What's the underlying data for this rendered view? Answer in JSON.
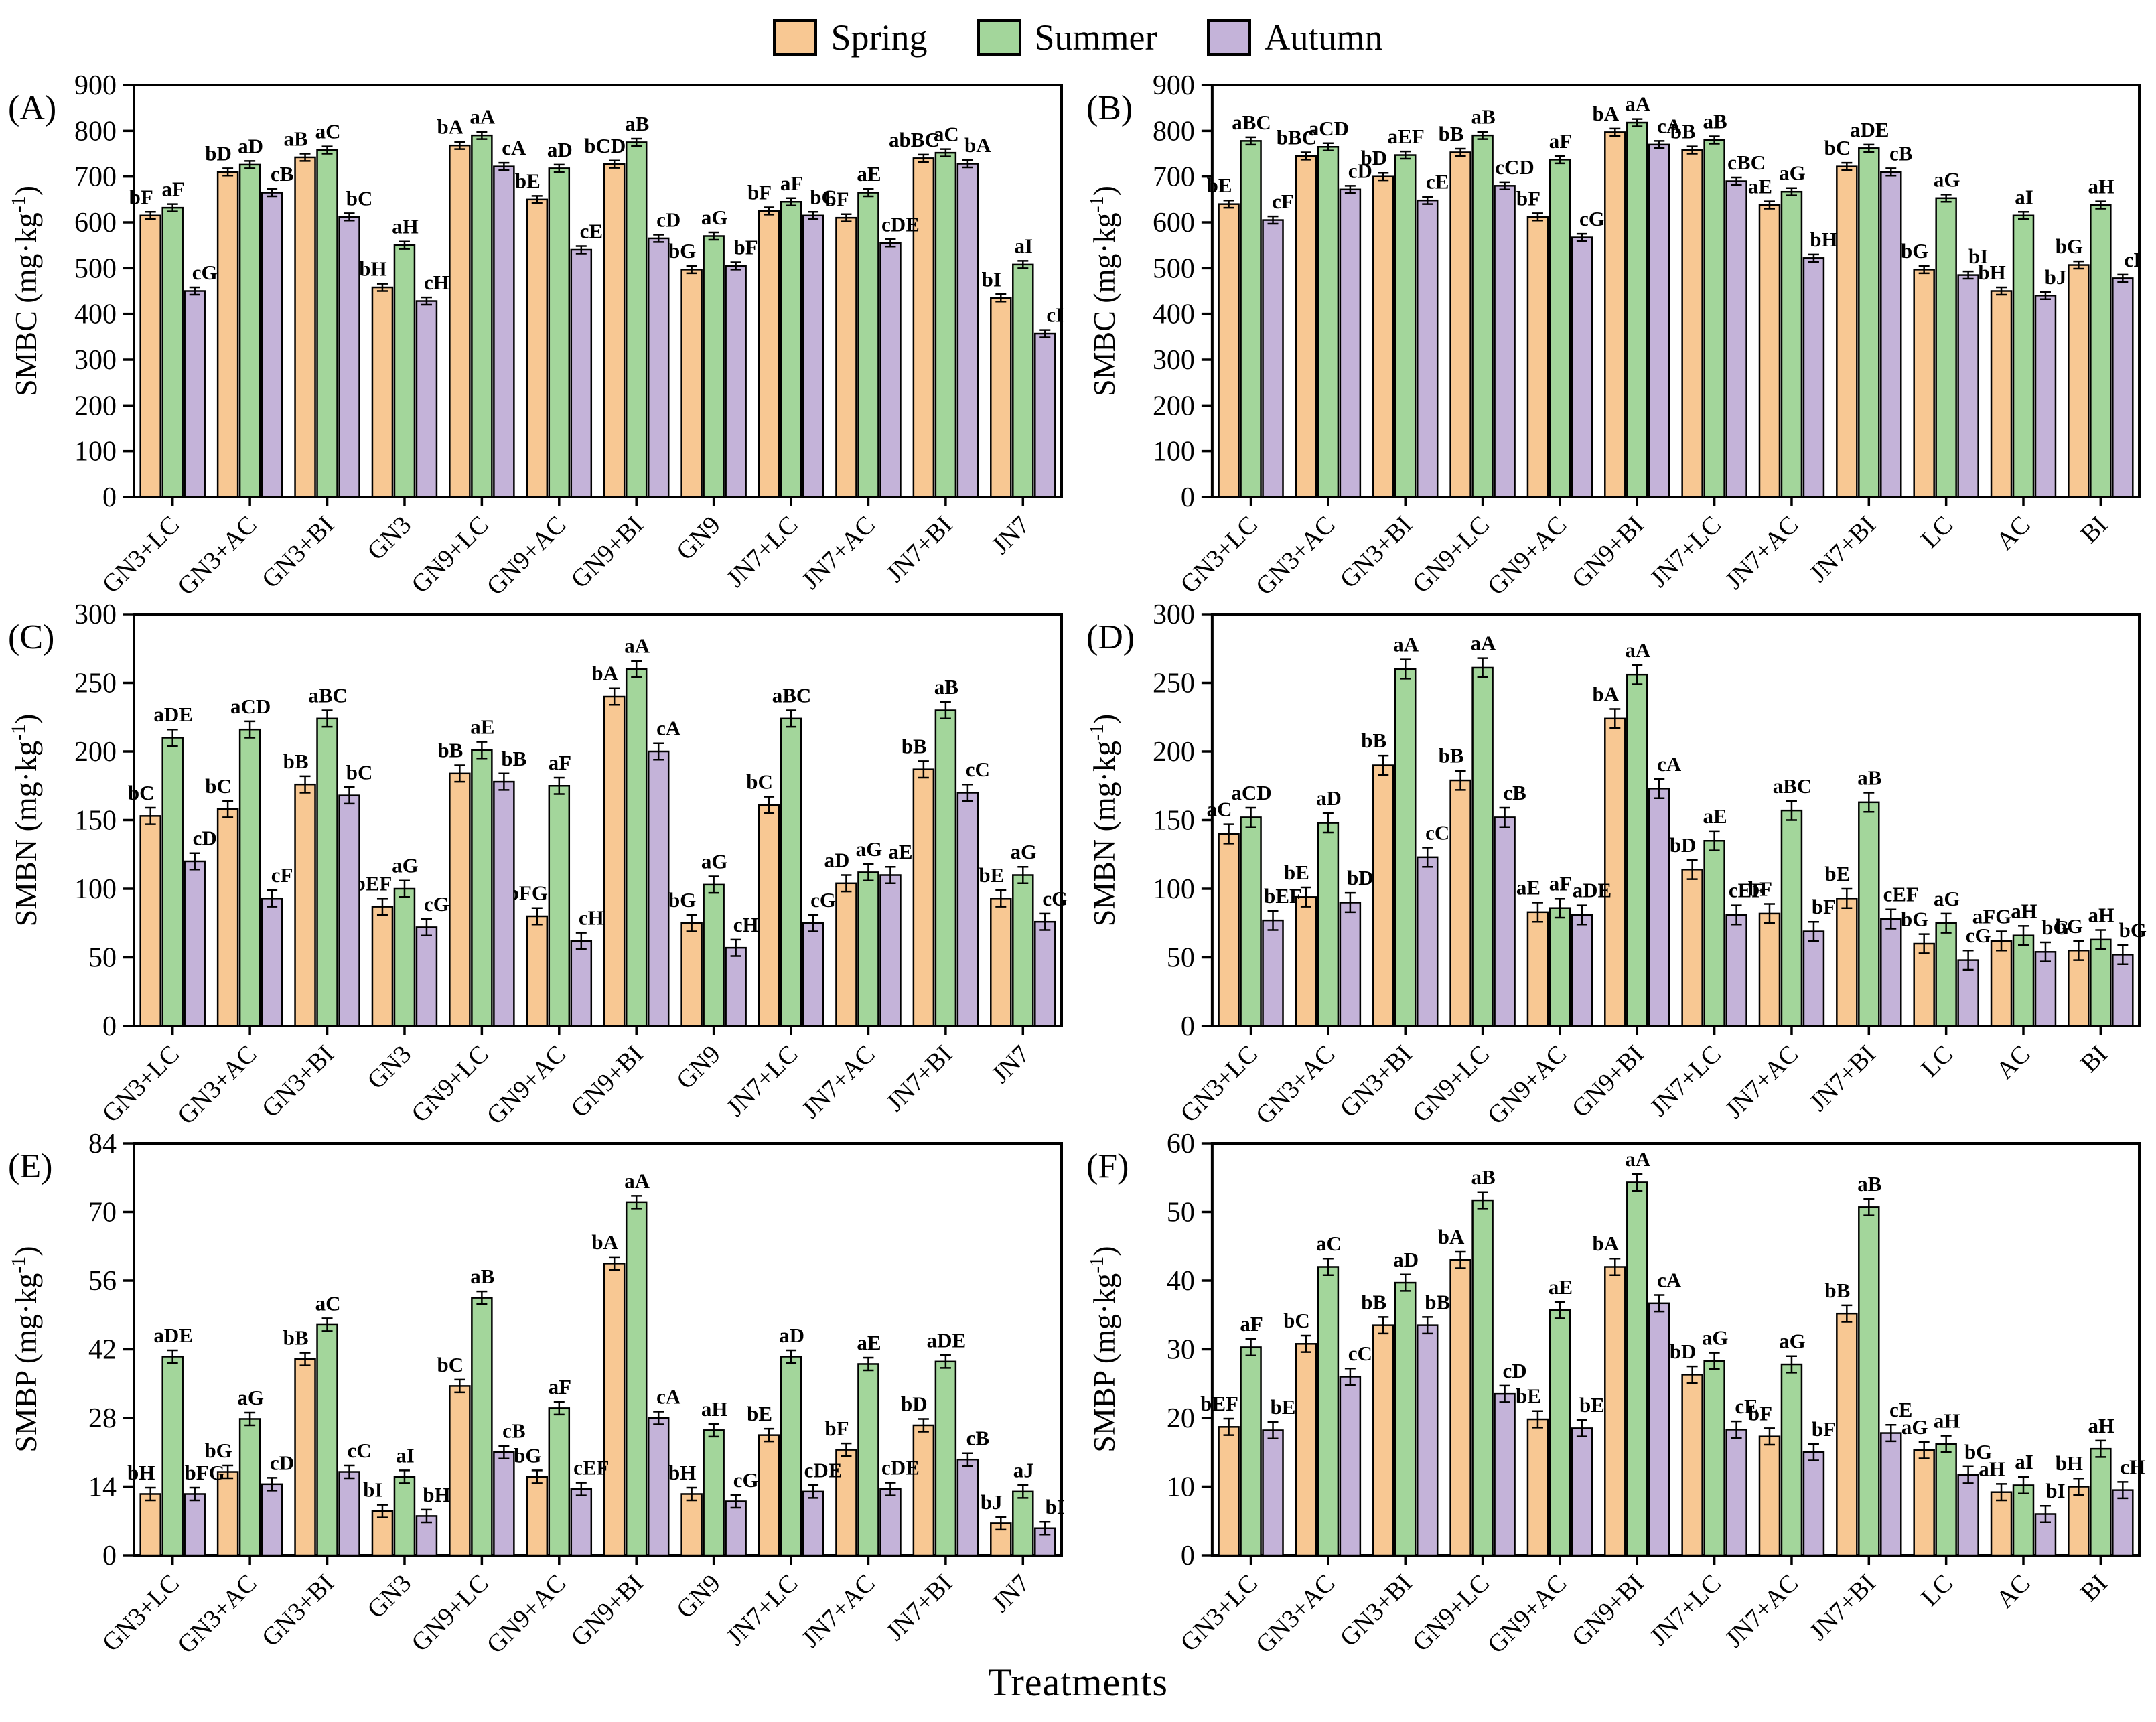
{
  "xlabel": "Treatments",
  "legend": {
    "items": [
      {
        "label": "Spring",
        "color": "#F8C893"
      },
      {
        "label": "Summer",
        "color": "#A3D69B"
      },
      {
        "label": "Autumn",
        "color": "#C4B3D9"
      }
    ]
  },
  "style": {
    "bar_border": "#000000",
    "axis_color": "#000000"
  },
  "chart_data": [
    {
      "type": "bar",
      "letter": "A",
      "ylabel": {
        "measure": "SMBC",
        "unit": "mg·kg",
        "sup": "-1"
      },
      "ylim": [
        0,
        900
      ],
      "ystep": 100,
      "err": 8,
      "legend_position": "top",
      "grid": false,
      "categories": [
        "GN3+LC",
        "GN3+AC",
        "GN3+BI",
        "GN3",
        "GN9+LC",
        "GN9+AC",
        "GN9+BI",
        "GN9",
        "JN7+LC",
        "JN7+AC",
        "JN7+BI",
        "JN7"
      ],
      "series": [
        {
          "name": "Spring",
          "values": [
            615,
            710,
            742,
            458,
            768,
            650,
            727,
            497,
            625,
            610,
            740,
            435
          ],
          "sig": [
            "bF",
            "bD",
            "aB",
            "bH",
            "bA",
            "bE",
            "bCD",
            "bG",
            "bF",
            "bF",
            "abBC",
            "bI"
          ]
        },
        {
          "name": "Summer",
          "values": [
            632,
            726,
            758,
            550,
            790,
            718,
            775,
            570,
            645,
            665,
            752,
            508
          ],
          "sig": [
            "aF",
            "aD",
            "aC",
            "aH",
            "aA",
            "aD",
            "aB",
            "aG",
            "aF",
            "aE",
            "aC",
            "aI"
          ]
        },
        {
          "name": "Autumn",
          "values": [
            450,
            665,
            612,
            428,
            722,
            540,
            565,
            505,
            615,
            555,
            728,
            357
          ],
          "sig": [
            "cG",
            "cB",
            "bC",
            "cH",
            "cA",
            "cE",
            "cD",
            "bF",
            "bC",
            "cDE",
            "bA",
            "cI"
          ]
        }
      ]
    },
    {
      "type": "bar",
      "letter": "B",
      "ylabel": {
        "measure": "SMBC",
        "unit": "mg·kg",
        "sup": "-1"
      },
      "ylim": [
        0,
        900
      ],
      "ystep": 100,
      "err": 8,
      "legend_position": "top",
      "grid": false,
      "categories": [
        "GN3+LC",
        "GN3+AC",
        "GN3+BI",
        "GN9+LC",
        "GN9+AC",
        "GN9+BI",
        "JN7+LC",
        "JN7+AC",
        "JN7+BI",
        "LC",
        "AC",
        "BI"
      ],
      "series": [
        {
          "name": "Spring",
          "values": [
            640,
            745,
            700,
            753,
            612,
            797,
            758,
            638,
            722,
            497,
            450,
            507
          ],
          "sig": [
            "bE",
            "bBC",
            "bD",
            "bB",
            "bF",
            "bA",
            "bB",
            "aE",
            "bC",
            "bG",
            "bH",
            "bG"
          ]
        },
        {
          "name": "Summer",
          "values": [
            778,
            765,
            747,
            790,
            737,
            818,
            780,
            667,
            762,
            653,
            615,
            638
          ],
          "sig": [
            "aBC",
            "aCD",
            "aEF",
            "aB",
            "aF",
            "aA",
            "aB",
            "aG",
            "aDE",
            "aG",
            "aI",
            "aH"
          ]
        },
        {
          "name": "Autumn",
          "values": [
            605,
            672,
            648,
            680,
            567,
            770,
            690,
            522,
            710,
            485,
            440,
            478
          ],
          "sig": [
            "cF",
            "cD",
            "cE",
            "cCD",
            "cG",
            "cA",
            "cBC",
            "bH",
            "cB",
            "bI",
            "bJ",
            "cI"
          ]
        }
      ]
    },
    {
      "type": "bar",
      "letter": "C",
      "ylabel": {
        "measure": "SMBN",
        "unit": "mg·kg",
        "sup": "-1"
      },
      "ylim": [
        0,
        300
      ],
      "ystep": 50,
      "err": 6,
      "legend_position": "top",
      "grid": false,
      "categories": [
        "GN3+LC",
        "GN3+AC",
        "GN3+BI",
        "GN3",
        "GN9+LC",
        "GN9+AC",
        "GN9+BI",
        "GN9",
        "JN7+LC",
        "JN7+AC",
        "JN7+BI",
        "JN7"
      ],
      "series": [
        {
          "name": "Spring",
          "values": [
            153,
            158,
            176,
            87,
            184,
            80,
            240,
            75,
            161,
            104,
            187,
            93
          ],
          "sig": [
            "bC",
            "bC",
            "bB",
            "bEF",
            "bB",
            "bFG",
            "bA",
            "bG",
            "bC",
            "aD",
            "bB",
            "bE"
          ]
        },
        {
          "name": "Summer",
          "values": [
            210,
            216,
            224,
            100,
            201,
            175,
            260,
            103,
            224,
            112,
            230,
            110
          ],
          "sig": [
            "aDE",
            "aCD",
            "aBC",
            "aG",
            "aE",
            "aF",
            "aA",
            "aG",
            "aBC",
            "aG",
            "aB",
            "aG"
          ]
        },
        {
          "name": "Autumn",
          "values": [
            120,
            93,
            168,
            72,
            178,
            62,
            200,
            57,
            75,
            110,
            170,
            76
          ],
          "sig": [
            "cD",
            "cF",
            "bC",
            "cG",
            "bB",
            "cH",
            "cA",
            "cH",
            "cG",
            "aE",
            "cC",
            "cG"
          ]
        }
      ]
    },
    {
      "type": "bar",
      "letter": "D",
      "ylabel": {
        "measure": "SMBN",
        "unit": "mg·kg",
        "sup": "-1"
      },
      "ylim": [
        0,
        300
      ],
      "ystep": 50,
      "err": 7,
      "legend_position": "top",
      "grid": false,
      "categories": [
        "GN3+LC",
        "GN3+AC",
        "GN3+BI",
        "GN9+LC",
        "GN9+AC",
        "GN9+BI",
        "JN7+LC",
        "JN7+AC",
        "JN7+BI",
        "LC",
        "AC",
        "BI"
      ],
      "series": [
        {
          "name": "Spring",
          "values": [
            140,
            94,
            190,
            179,
            83,
            224,
            114,
            82,
            93,
            60,
            62,
            55
          ],
          "sig": [
            "aC",
            "bE",
            "bB",
            "bB",
            "aE",
            "bA",
            "bD",
            "bF",
            "bE",
            "bG",
            "aFG",
            "bG"
          ]
        },
        {
          "name": "Summer",
          "values": [
            152,
            148,
            260,
            261,
            86,
            256,
            135,
            157,
            163,
            75,
            66,
            63
          ],
          "sig": [
            "aCD",
            "aD",
            "aA",
            "aA",
            "aF",
            "aA",
            "aE",
            "aBC",
            "aB",
            "aG",
            "aH",
            "aH"
          ]
        },
        {
          "name": "Autumn",
          "values": [
            77,
            90,
            123,
            152,
            81,
            173,
            81,
            69,
            78,
            48,
            54,
            52
          ],
          "sig": [
            "bEF",
            "bD",
            "cC",
            "cB",
            "aDE",
            "cA",
            "cEF",
            "bF",
            "cEF",
            "cG",
            "bG",
            "bG"
          ]
        }
      ]
    },
    {
      "type": "bar",
      "letter": "E",
      "ylabel": {
        "measure": "SMBP",
        "unit": "mg·kg",
        "sup": "-1"
      },
      "ylim": [
        0,
        84
      ],
      "ystep": 14,
      "err": 1.3,
      "legend_position": "top",
      "grid": false,
      "categories": [
        "GN3+LC",
        "GN3+AC",
        "GN3+BI",
        "GN3",
        "GN9+LC",
        "GN9+AC",
        "GN9+BI",
        "GN9",
        "JN7+LC",
        "JN7+AC",
        "JN7+BI",
        "JN7"
      ],
      "series": [
        {
          "name": "Spring",
          "values": [
            12.5,
            17,
            40,
            9,
            34.5,
            16,
            59.5,
            12.5,
            24.5,
            21.5,
            26.5,
            6.5
          ],
          "sig": [
            "bH",
            "bG",
            "bB",
            "bI",
            "bC",
            "bG",
            "bA",
            "bH",
            "bE",
            "bF",
            "bD",
            "bJ"
          ]
        },
        {
          "name": "Summer",
          "values": [
            40.5,
            27.8,
            47,
            16,
            52.5,
            30,
            72,
            25.5,
            40.5,
            39,
            39.5,
            13
          ],
          "sig": [
            "aDE",
            "aG",
            "aC",
            "aI",
            "aB",
            "aF",
            "aA",
            "aH",
            "aD",
            "aE",
            "aDE",
            "aJ"
          ]
        },
        {
          "name": "Autumn",
          "values": [
            12.5,
            14.5,
            17,
            8,
            21,
            13.5,
            28,
            11,
            13,
            13.5,
            19.5,
            5.5
          ],
          "sig": [
            "bFG",
            "cD",
            "cC",
            "bH",
            "cB",
            "cEF",
            "cA",
            "cG",
            "cDE",
            "cDE",
            "cB",
            "bI"
          ]
        }
      ]
    },
    {
      "type": "bar",
      "letter": "F",
      "ylabel": {
        "measure": "SMBP",
        "unit": "mg·kg",
        "sup": "-1"
      },
      "ylim": [
        0,
        60
      ],
      "ystep": 10,
      "err": 1.2,
      "legend_position": "top",
      "grid": false,
      "categories": [
        "GN3+LC",
        "GN3+AC",
        "GN3+BI",
        "GN9+LC",
        "GN9+AC",
        "GN9+BI",
        "JN7+LC",
        "JN7+AC",
        "JN7+BI",
        "LC",
        "AC",
        "BI"
      ],
      "series": [
        {
          "name": "Spring",
          "values": [
            18.7,
            30.8,
            33.5,
            43,
            19.8,
            42,
            26.3,
            17.3,
            35.2,
            15.3,
            9.2,
            10
          ],
          "sig": [
            "bEF",
            "bC",
            "bB",
            "bA",
            "bE",
            "bA",
            "bD",
            "bF",
            "bB",
            "aG",
            "aH",
            "bH"
          ]
        },
        {
          "name": "Summer",
          "values": [
            30.3,
            42,
            39.7,
            51.7,
            35.7,
            54.3,
            28.3,
            27.8,
            50.7,
            16.2,
            10.2,
            15.5
          ],
          "sig": [
            "aF",
            "aC",
            "aD",
            "aB",
            "aE",
            "aA",
            "aG",
            "aG",
            "aB",
            "aH",
            "aI",
            "aH"
          ]
        },
        {
          "name": "Autumn",
          "values": [
            18.2,
            26,
            33.5,
            23.5,
            18.5,
            36.7,
            18.3,
            15,
            17.8,
            11.7,
            6,
            9.5
          ],
          "sig": [
            "bE",
            "cC",
            "bB",
            "cD",
            "bE",
            "cA",
            "cE",
            "bF",
            "cE",
            "bG",
            "bI",
            "cH"
          ]
        }
      ]
    }
  ]
}
